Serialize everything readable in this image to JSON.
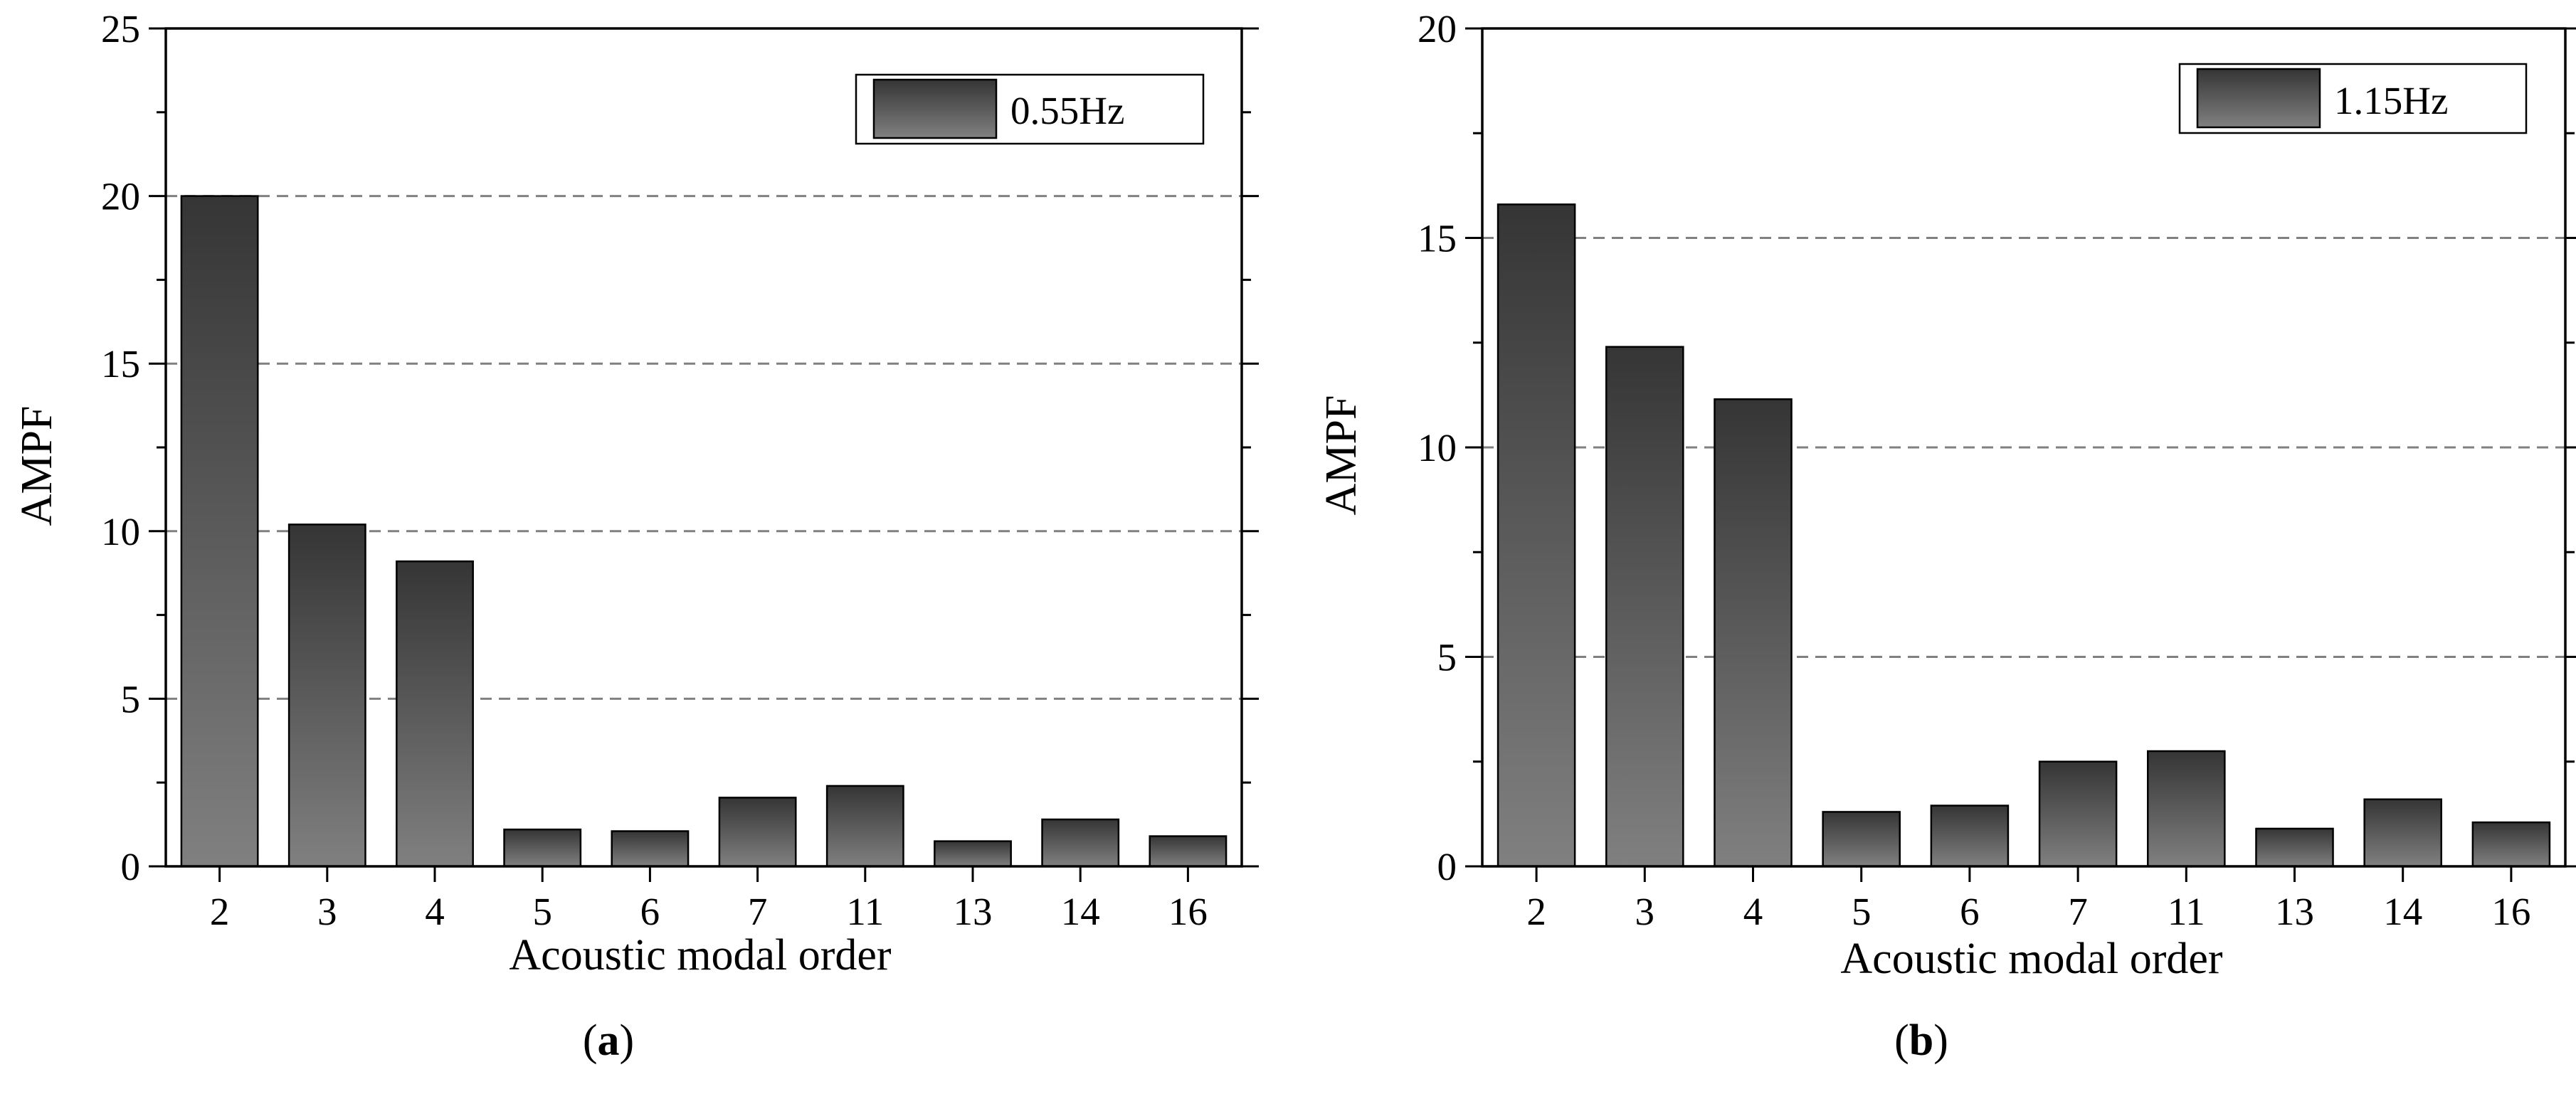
{
  "colors": {
    "bar_top": "#353535",
    "bar_bottom": "#808080",
    "gridline": "#808080",
    "axis": "#000000"
  },
  "chart_data": [
    {
      "type": "bar",
      "caption_open": "(",
      "caption_letter": "a",
      "caption_close": ")",
      "xlabel": "Acoustic modal order",
      "ylabel": "AMPF",
      "categories": [
        "2",
        "3",
        "4",
        "5",
        "6",
        "7",
        "11",
        "13",
        "14",
        "16"
      ],
      "series": [
        {
          "name": "0.55Hz",
          "values": [
            20.0,
            10.2,
            9.1,
            1.1,
            1.05,
            2.05,
            2.4,
            0.75,
            1.4,
            0.9
          ]
        }
      ],
      "ylim": [
        0,
        25
      ],
      "yticks": [
        "0",
        "5",
        "10",
        "15",
        "20",
        "25"
      ],
      "ytick_values": [
        0,
        5,
        10,
        15,
        20,
        25
      ],
      "grid_values": [
        5,
        10,
        15,
        20
      ],
      "grid": "dashed horizontal",
      "legend_position": "top-right"
    },
    {
      "type": "bar",
      "caption_open": "(",
      "caption_letter": "b",
      "caption_close": ")",
      "xlabel": "Acoustic modal order",
      "ylabel": "AMPF",
      "categories": [
        "2",
        "3",
        "4",
        "5",
        "6",
        "7",
        "11",
        "13",
        "14",
        "16"
      ],
      "series": [
        {
          "name": "1.15Hz",
          "values": [
            15.8,
            12.4,
            11.15,
            1.3,
            1.45,
            2.5,
            2.75,
            0.9,
            1.6,
            1.05
          ]
        }
      ],
      "ylim": [
        0,
        20
      ],
      "yticks": [
        "0",
        "5",
        "10",
        "15",
        "20"
      ],
      "ytick_values": [
        0,
        5,
        10,
        15,
        20
      ],
      "grid_values": [
        5,
        10,
        15
      ],
      "grid": "dashed horizontal",
      "legend_position": "top-right"
    }
  ]
}
